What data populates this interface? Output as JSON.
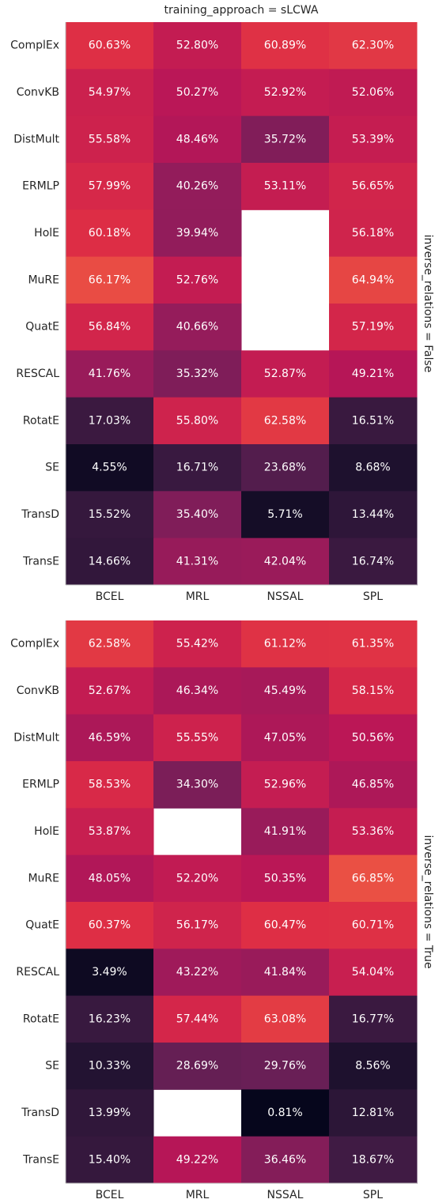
{
  "chart_data": [
    {
      "type": "heatmap",
      "title": "training_approach = sLCWA",
      "facet_label": "inverse_relations = False",
      "x": [
        "BCEL",
        "MRL",
        "NSSAL",
        "SPL"
      ],
      "y": [
        "ComplEx",
        "ConvKB",
        "DistMult",
        "ERMLP",
        "HolE",
        "MuRE",
        "QuatE",
        "RESCAL",
        "RotatE",
        "SE",
        "TransD",
        "TransE"
      ],
      "values": [
        [
          60.63,
          52.8,
          60.89,
          62.3
        ],
        [
          54.97,
          50.27,
          52.92,
          52.06
        ],
        [
          55.58,
          48.46,
          35.72,
          53.39
        ],
        [
          57.99,
          40.26,
          53.11,
          56.65
        ],
        [
          60.18,
          39.94,
          null,
          56.18
        ],
        [
          66.17,
          52.76,
          null,
          64.94
        ],
        [
          56.84,
          40.66,
          null,
          57.19
        ],
        [
          41.76,
          35.32,
          52.87,
          49.21
        ],
        [
          17.03,
          55.8,
          62.58,
          16.51
        ],
        [
          4.55,
          16.71,
          23.68,
          8.68
        ],
        [
          15.52,
          35.4,
          5.71,
          13.44
        ],
        [
          14.66,
          41.31,
          42.04,
          16.74
        ]
      ],
      "value_labels": [
        [
          "60.63%",
          "52.80%",
          "60.89%",
          "62.30%"
        ],
        [
          "54.97%",
          "50.27%",
          "52.92%",
          "52.06%"
        ],
        [
          "55.58%",
          "48.46%",
          "35.72%",
          "53.39%"
        ],
        [
          "57.99%",
          "40.26%",
          "53.11%",
          "56.65%"
        ],
        [
          "60.18%",
          "39.94%",
          null,
          "56.18%"
        ],
        [
          "66.17%",
          "52.76%",
          null,
          "64.94%"
        ],
        [
          "56.84%",
          "40.66%",
          null,
          "57.19%"
        ],
        [
          "41.76%",
          "35.32%",
          "52.87%",
          "49.21%"
        ],
        [
          "17.03%",
          "55.80%",
          "62.58%",
          "16.51%"
        ],
        [
          "4.55%",
          "16.71%",
          "23.68%",
          "8.68%"
        ],
        [
          "15.52%",
          "35.40%",
          "5.71%",
          "13.44%"
        ],
        [
          "14.66%",
          "41.31%",
          "42.04%",
          "16.74%"
        ]
      ],
      "colormap": "rocket",
      "clim": [
        0,
        100
      ]
    },
    {
      "type": "heatmap",
      "facet_label": "inverse_relations = True",
      "x": [
        "BCEL",
        "MRL",
        "NSSAL",
        "SPL"
      ],
      "y": [
        "ComplEx",
        "ConvKB",
        "DistMult",
        "ERMLP",
        "HolE",
        "MuRE",
        "QuatE",
        "RESCAL",
        "RotatE",
        "SE",
        "TransD",
        "TransE"
      ],
      "values": [
        [
          62.58,
          55.42,
          61.12,
          61.35
        ],
        [
          52.67,
          46.34,
          45.49,
          58.15
        ],
        [
          46.59,
          55.55,
          47.05,
          50.56
        ],
        [
          58.53,
          34.3,
          52.96,
          46.85
        ],
        [
          53.87,
          null,
          41.91,
          53.36
        ],
        [
          48.05,
          52.2,
          50.35,
          66.85
        ],
        [
          60.37,
          56.17,
          60.47,
          60.71
        ],
        [
          3.49,
          43.22,
          41.84,
          54.04
        ],
        [
          16.23,
          57.44,
          63.08,
          16.77
        ],
        [
          10.33,
          28.69,
          29.76,
          8.56
        ],
        [
          13.99,
          null,
          0.81,
          12.81
        ],
        [
          15.4,
          49.22,
          36.46,
          18.67
        ]
      ],
      "value_labels": [
        [
          "62.58%",
          "55.42%",
          "61.12%",
          "61.35%"
        ],
        [
          "52.67%",
          "46.34%",
          "45.49%",
          "58.15%"
        ],
        [
          "46.59%",
          "55.55%",
          "47.05%",
          "50.56%"
        ],
        [
          "58.53%",
          "34.30%",
          "52.96%",
          "46.85%"
        ],
        [
          "53.87%",
          null,
          "41.91%",
          "53.36%"
        ],
        [
          "48.05%",
          "52.20%",
          "50.35%",
          "66.85%"
        ],
        [
          "60.37%",
          "56.17%",
          "60.47%",
          "60.71%"
        ],
        [
          "3.49%",
          "43.22%",
          "41.84%",
          "54.04%"
        ],
        [
          "16.23%",
          "57.44%",
          "63.08%",
          "16.77%"
        ],
        [
          "10.33%",
          "28.69%",
          "29.76%",
          "8.56%"
        ],
        [
          "13.99%",
          null,
          "0.81%",
          "12.81%"
        ],
        [
          "15.40%",
          "49.22%",
          "36.46%",
          "18.67%"
        ]
      ],
      "colormap": "rocket",
      "clim": [
        0,
        100
      ]
    }
  ]
}
